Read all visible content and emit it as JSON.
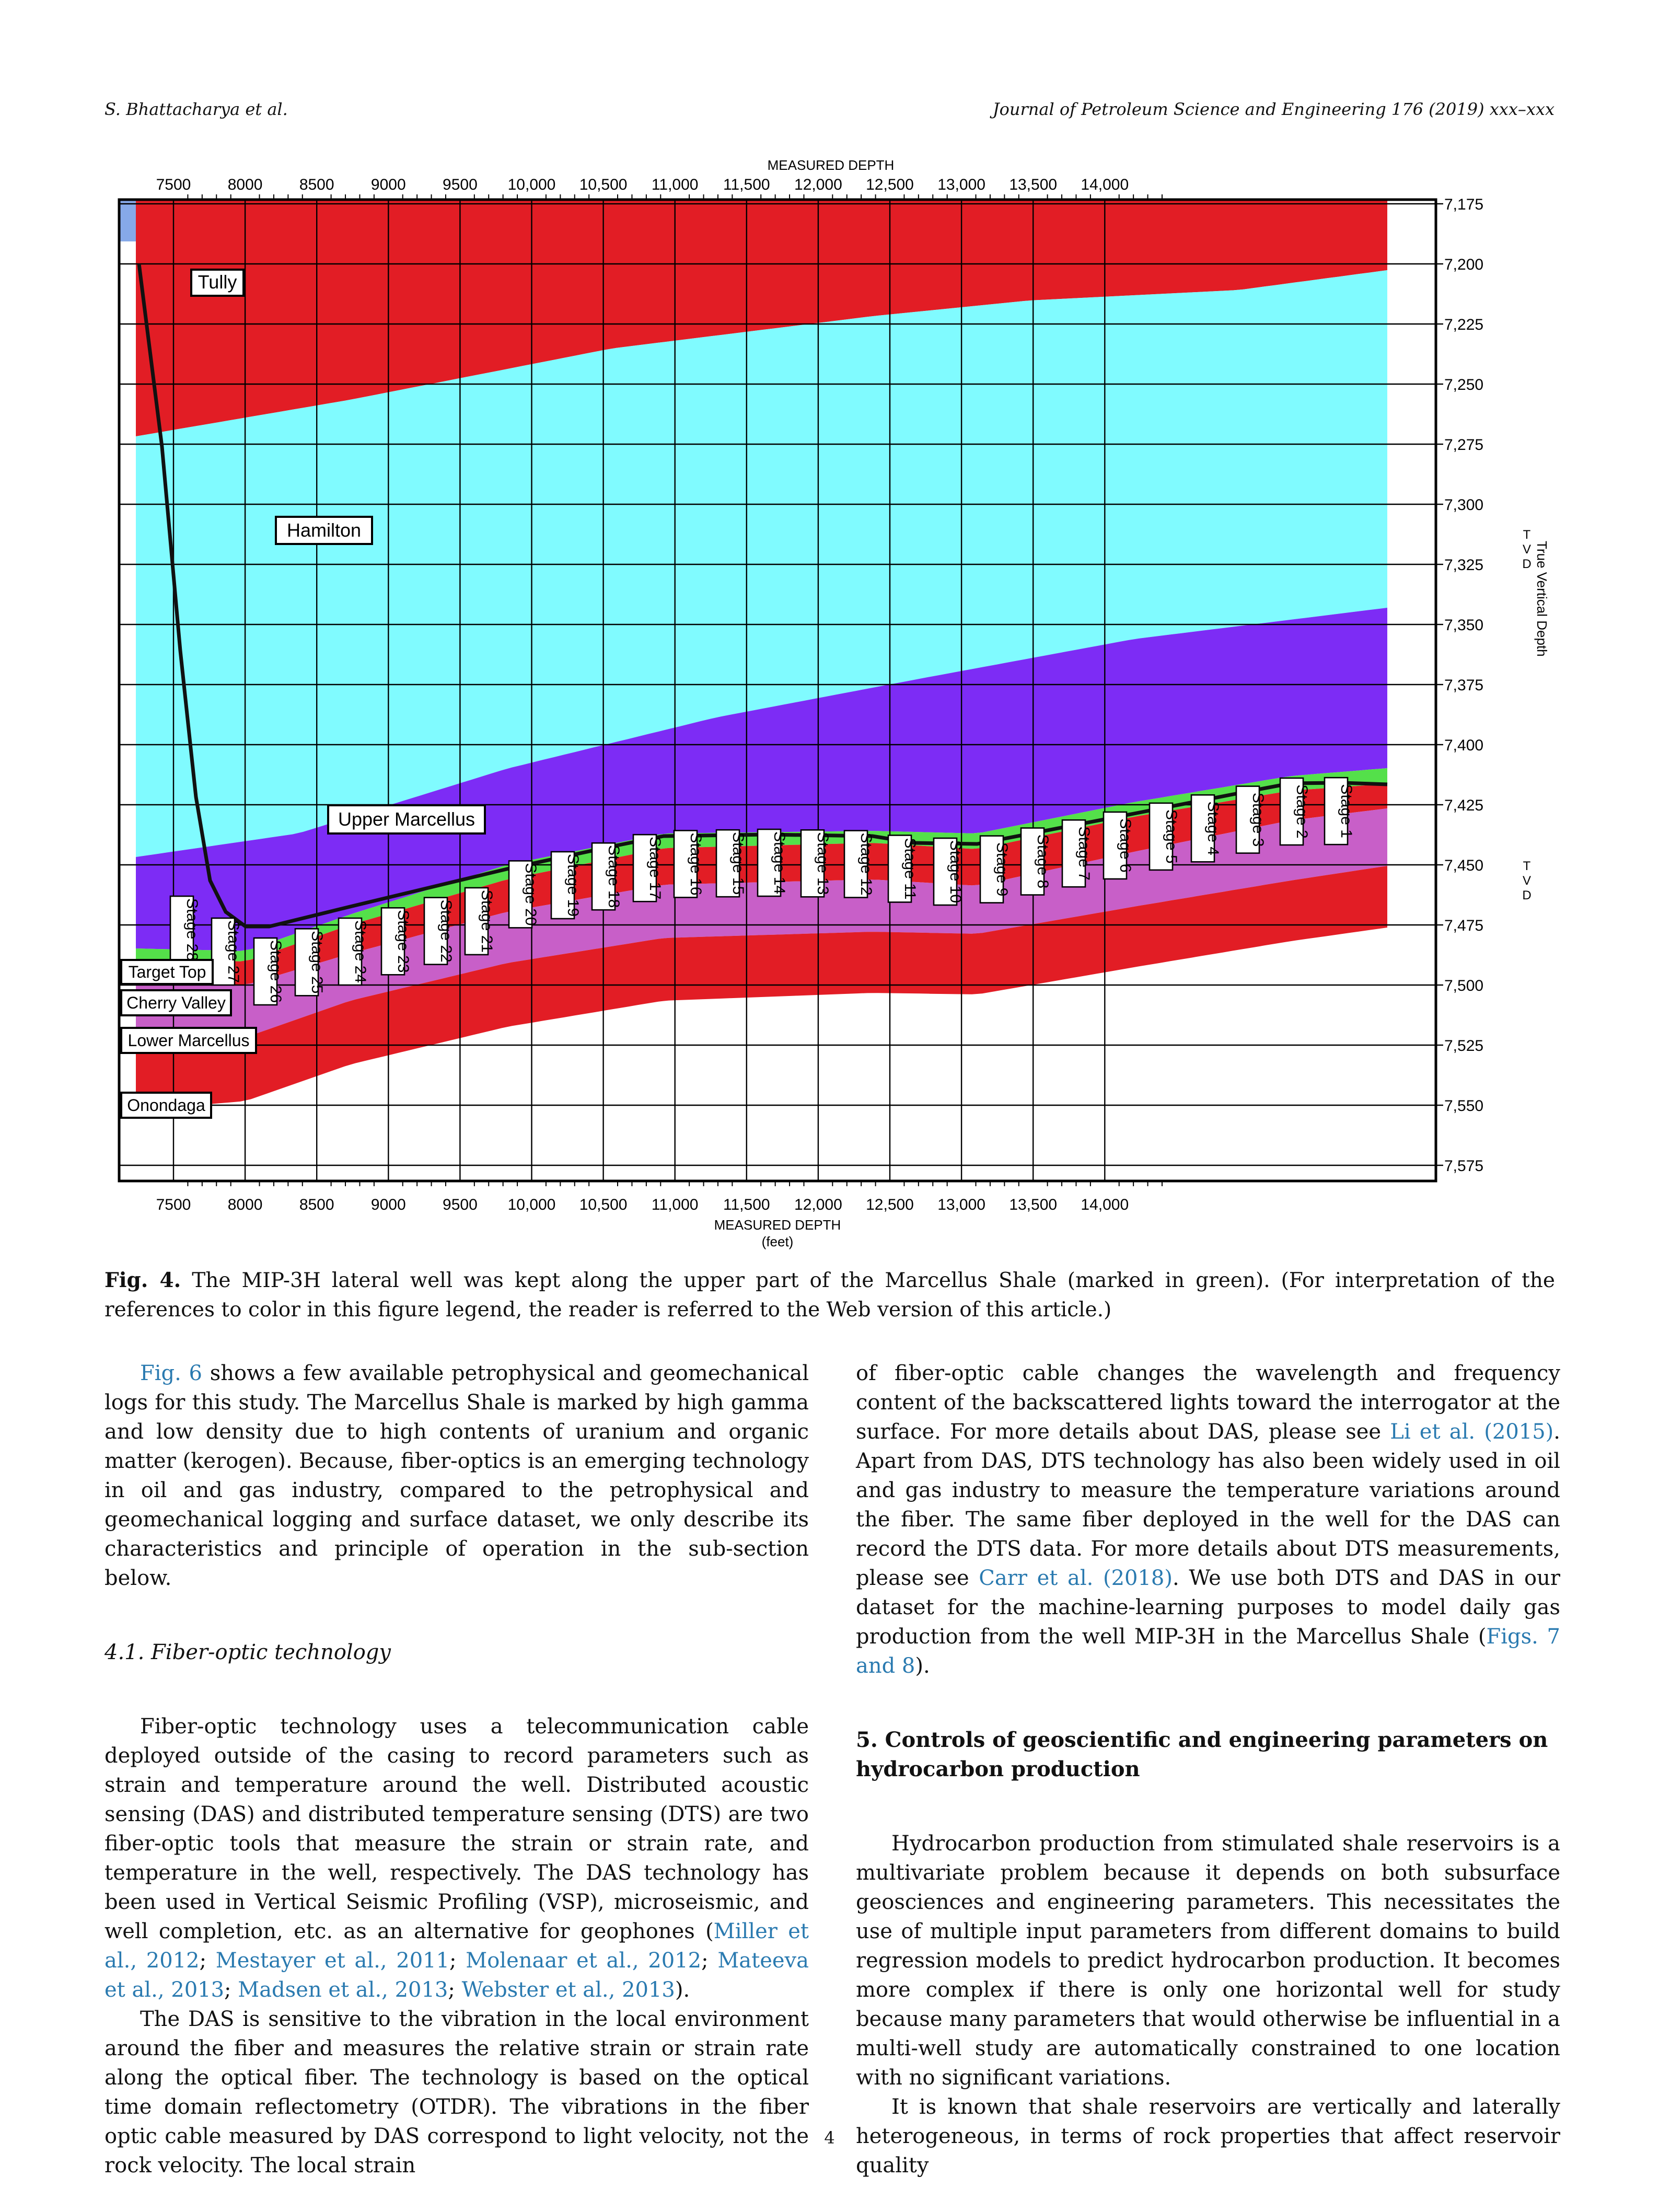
{
  "header": {
    "authors": "S. Bhattacharya et al.",
    "journal": "Journal of Petroleum Science and Engineering 176 (2019) xxx–xxx"
  },
  "figure": {
    "top_axis_title": "MEASURED DEPTH",
    "bottom_axis_title": "MEASURED DEPTH",
    "bottom_axis_unit": "(feet)",
    "right_axis_title": "True Vertical Depth",
    "tvd_label": [
      "T",
      "V",
      "D"
    ],
    "md_ticks": [
      "7500",
      "8000",
      "8500",
      "9000",
      "9500",
      "10,000",
      "10,500",
      "11,000",
      "11,500",
      "12,000",
      "12,500",
      "13,000",
      "13,500",
      "14,000"
    ],
    "tvd_ticks": [
      "7,175",
      "7,200",
      "7,225",
      "7,250",
      "7,275",
      "7,300",
      "7,325",
      "7,350",
      "7,375",
      "7,400",
      "7,425",
      "7,450",
      "7,475",
      "7,500",
      "7,525",
      "7,550",
      "7,575"
    ],
    "formation_labels": {
      "tully": "Tully",
      "hamilton": "Hamilton",
      "upper_marcellus": "Upper Marcellus",
      "target_top": "Target Top",
      "cherry_valley": "Cherry Valley",
      "lower_marcellus": "Lower Marcellus",
      "onondaga": "Onondaga"
    },
    "stages": [
      "Stage 1",
      "Stage 2",
      "Stage 3",
      "Stage 4",
      "Stage 5",
      "Stage 6",
      "Stage 7",
      "Stage 8",
      "Stage 9",
      "Stage 10",
      "Stage 11",
      "Stage 12",
      "Stage 13",
      "Stage 14",
      "Stage 15",
      "Stage 16",
      "Stage 17",
      "Stage 18",
      "Stage 19",
      "Stage 20",
      "Stage 21",
      "Stage 22",
      "Stage 23",
      "Stage 24",
      "Stage 25",
      "Stage 26",
      "Stage 27",
      "Stage 28"
    ],
    "colors": {
      "tully": "#e21d25",
      "hamilton": "#80fbff",
      "upper_marcellus": "#7d2cf5",
      "target": "#54e04a",
      "cherry_valley": "#e21d25",
      "lower_marcellus": "#c85fc8",
      "onondaga": "#e21d25",
      "sky": "#86a9e8",
      "well": "#111111"
    }
  },
  "caption": {
    "label": "Fig. 4.",
    "text": "The MIP-3H lateral well was kept along the upper part of the Marcellus Shale (marked in green). (For interpretation of the references to color in this figure legend, the reader is referred to the Web version of this article.)"
  },
  "left_column": {
    "p1_link": "Fig. 6",
    "p1": " shows a few available petrophysical and geomechanical logs for this study. The Marcellus Shale is marked by high gamma and low density due to high contents of uranium and organic matter (kerogen). Because, fiber-optics is an emerging technology in oil and gas industry, compared to the petrophysical and geomechanical logging and surface dataset, we only describe its characteristics and principle of operation in the sub-section below.",
    "section_title": "4.1.  Fiber-optic technology",
    "p2_a": "Fiber-optic technology uses a telecommunication cable deployed outside of the casing to record parameters such as strain and temperature around the well. Distributed acoustic sensing (DAS) and distributed temperature sensing (DTS) are two fiber-optic tools that measure the strain or strain rate, and temperature in the well, respectively. The DAS technology has been used in Vertical Seismic Profiling (VSP), microseismic, and well completion, etc. as an alternative for geophones (",
    "ref_miller": "Miller et al., 2012",
    "ref_mestayer": "Mestayer et al., 2011",
    "ref_molenaar": "Molenaar et al., 2012",
    "ref_mateeva": "Mateeva et al., 2013",
    "ref_madsen": "Madsen et al., 2013",
    "ref_webster": "Webster et al., 2013",
    "p3": "The DAS is sensitive to the vibration in the local environment around the fiber and measures the relative strain or strain rate along the optical fiber. The technology is based on the optical time domain reflectometry (OTDR). The vibrations in the fiber optic cable measured by DAS correspond to light velocity, not the rock velocity. The local strain"
  },
  "right_column": {
    "p1_a": "of fiber-optic cable changes the wavelength and frequency content of the backscattered lights toward the interrogator at the surface. For more details about DAS, please see ",
    "ref_li": "Li et al. (2015)",
    "p1_b": ". Apart from DAS, DTS technology has also been widely used in oil and gas industry to measure the temperature variations around the fiber. The same fiber deployed in the well for the DAS can record the DTS data. For more details about DTS measurements, please see ",
    "ref_carr": "Carr et al. (2018)",
    "p1_c": ". We use both DTS and DAS in our dataset for the machine-learning purposes to model daily gas production from the well MIP-3H in the Marcellus Shale (",
    "ref_figs": "Figs. 7 and 8",
    "p1_d": ").",
    "section_title": "5.  Controls of geoscientific and engineering parameters on hydrocarbon production",
    "p2": "Hydrocarbon production from stimulated shale reservoirs is a multivariate problem because it depends on both subsurface geosciences and engineering parameters. This necessitates the use of multiple input parameters from different domains to build regression models to predict hydrocarbon production. It becomes more complex if there is only one horizontal well for study because many parameters that would otherwise be influential in a multi-well study are automatically constrained to one location with no significant variations.",
    "p3": "It is known that shale reservoirs are vertically and laterally heterogeneous, in terms of rock properties that affect reservoir quality"
  },
  "page_number": "4"
}
